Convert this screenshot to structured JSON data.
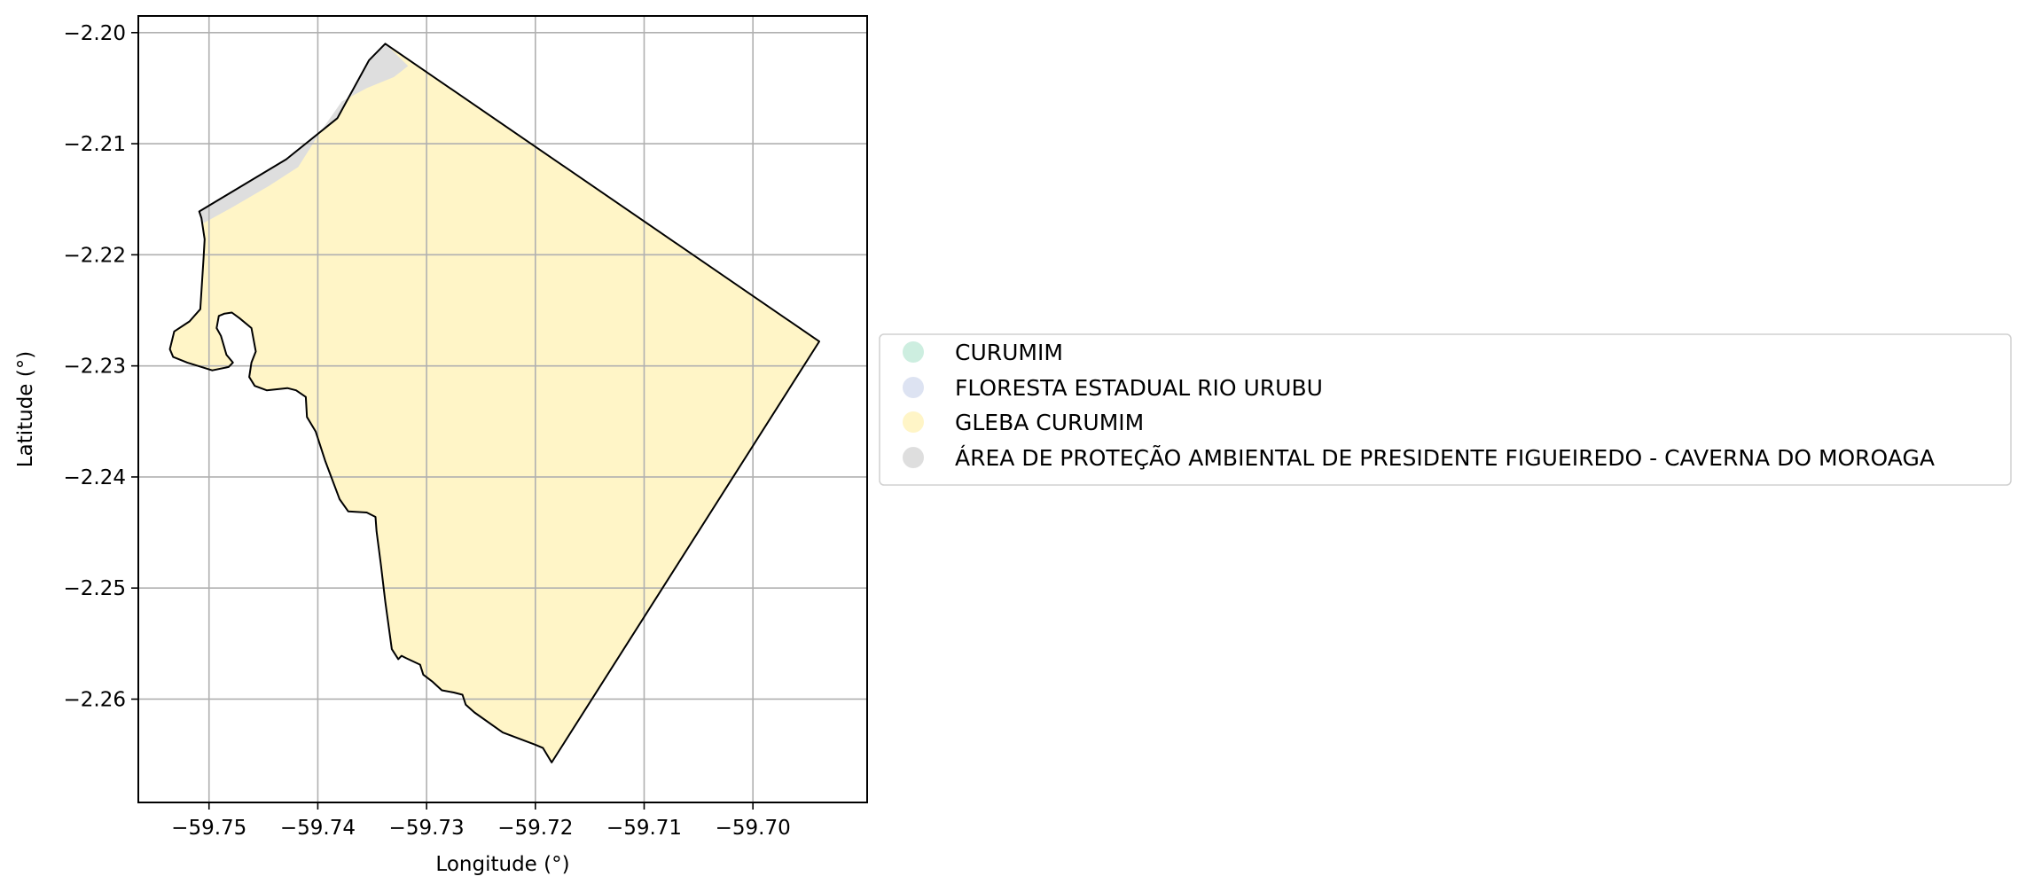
{
  "map": {
    "xlabel": "Longitude (°)",
    "ylabel": "Latitude (°)",
    "xlim": [
      -59.7565,
      -59.6895
    ],
    "ylim": [
      -2.2693,
      -2.1985
    ],
    "x_ticks": [
      -59.75,
      -59.74,
      -59.73,
      -59.72,
      -59.71,
      -59.7
    ],
    "y_ticks": [
      -2.2,
      -2.21,
      -2.22,
      -2.23,
      -2.24,
      -2.25,
      -2.26
    ],
    "x_tick_labels": [
      "−59.75",
      "−59.74",
      "−59.73",
      "−59.72",
      "−59.71",
      "−59.70"
    ],
    "y_tick_labels": [
      "−2.20",
      "−2.21",
      "−2.22",
      "−2.23",
      "−2.24",
      "−2.25",
      "−2.26"
    ],
    "grid": true,
    "legend_placement": "outside-right",
    "legend": [
      {
        "label": "CURUMIM",
        "color": "#cdeee0"
      },
      {
        "label": "FLORESTA ESTADUAL RIO URUBU",
        "color": "#dde3f2"
      },
      {
        "label": "GLEBA CURUMIM",
        "color": "#fff5c7"
      },
      {
        "label": "ÁREA DE PROTEÇÃO AMBIENTAL DE PRESIDENTE FIGUEIREDO - CAVERNA DO MOROAGA",
        "color": "#dedede"
      }
    ],
    "outline_color": "#000000",
    "boundary": [
      [
        -59.7338,
        -2.201
      ],
      [
        -59.7353,
        -2.2025
      ],
      [
        -59.7382,
        -2.2077
      ],
      [
        -59.7429,
        -2.2114
      ],
      [
        -59.7509,
        -2.2161
      ],
      [
        -59.7507,
        -2.2167
      ],
      [
        -59.7504,
        -2.2186
      ],
      [
        -59.7505,
        -2.2203
      ],
      [
        -59.7508,
        -2.2249
      ],
      [
        -59.7518,
        -2.226
      ],
      [
        -59.7532,
        -2.2269
      ],
      [
        -59.7536,
        -2.2285
      ],
      [
        -59.7533,
        -2.2292
      ],
      [
        -59.752,
        -2.2297
      ],
      [
        -59.7497,
        -2.2304
      ],
      [
        -59.7482,
        -2.2301
      ],
      [
        -59.7478,
        -2.2297
      ],
      [
        -59.7484,
        -2.229
      ],
      [
        -59.7489,
        -2.2273
      ],
      [
        -59.7493,
        -2.2266
      ],
      [
        -59.7491,
        -2.2255
      ],
      [
        -59.7486,
        -2.2253
      ],
      [
        -59.7479,
        -2.2252
      ],
      [
        -59.7472,
        -2.2257
      ],
      [
        -59.7461,
        -2.2266
      ],
      [
        -59.7457,
        -2.2287
      ],
      [
        -59.7461,
        -2.2297
      ],
      [
        -59.7463,
        -2.231
      ],
      [
        -59.7458,
        -2.2318
      ],
      [
        -59.7447,
        -2.2322
      ],
      [
        -59.7428,
        -2.232
      ],
      [
        -59.742,
        -2.2322
      ],
      [
        -59.7411,
        -2.2328
      ],
      [
        -59.741,
        -2.2346
      ],
      [
        -59.7402,
        -2.2359
      ],
      [
        -59.7393,
        -2.2386
      ],
      [
        -59.738,
        -2.242
      ],
      [
        -59.7372,
        -2.2431
      ],
      [
        -59.7355,
        -2.2432
      ],
      [
        -59.7347,
        -2.2436
      ],
      [
        -59.7346,
        -2.2449
      ],
      [
        -59.7342,
        -2.2479
      ],
      [
        -59.7338,
        -2.2512
      ],
      [
        -59.7332,
        -2.2555
      ],
      [
        -59.7326,
        -2.2564
      ],
      [
        -59.7323,
        -2.2561
      ],
      [
        -59.7319,
        -2.2563
      ],
      [
        -59.7306,
        -2.2569
      ],
      [
        -59.7303,
        -2.2578
      ],
      [
        -59.7295,
        -2.2584
      ],
      [
        -59.7286,
        -2.2592
      ],
      [
        -59.7275,
        -2.2594
      ],
      [
        -59.7267,
        -2.2596
      ],
      [
        -59.7264,
        -2.2605
      ],
      [
        -59.7256,
        -2.2612
      ],
      [
        -59.723,
        -2.263
      ],
      [
        -59.72,
        -2.2641
      ],
      [
        -59.7193,
        -2.2644
      ],
      [
        -59.7185,
        -2.2657
      ],
      [
        -59.6939,
        -2.2278
      ],
      [
        -59.7338,
        -2.201
      ]
    ],
    "apa_region": [
      [
        -59.7338,
        -2.201
      ],
      [
        -59.7353,
        -2.2025
      ],
      [
        -59.7382,
        -2.2077
      ],
      [
        -59.7429,
        -2.2114
      ],
      [
        -59.7509,
        -2.2161
      ],
      [
        -59.7506,
        -2.2172
      ],
      [
        -59.748,
        -2.2158
      ],
      [
        -59.7445,
        -2.2138
      ],
      [
        -59.7418,
        -2.2121
      ],
      [
        -59.7398,
        -2.209
      ],
      [
        -59.7378,
        -2.2062
      ],
      [
        -59.7355,
        -2.205
      ],
      [
        -59.733,
        -2.204
      ],
      [
        -59.7317,
        -2.203
      ],
      [
        -59.7338,
        -2.201
      ]
    ]
  }
}
